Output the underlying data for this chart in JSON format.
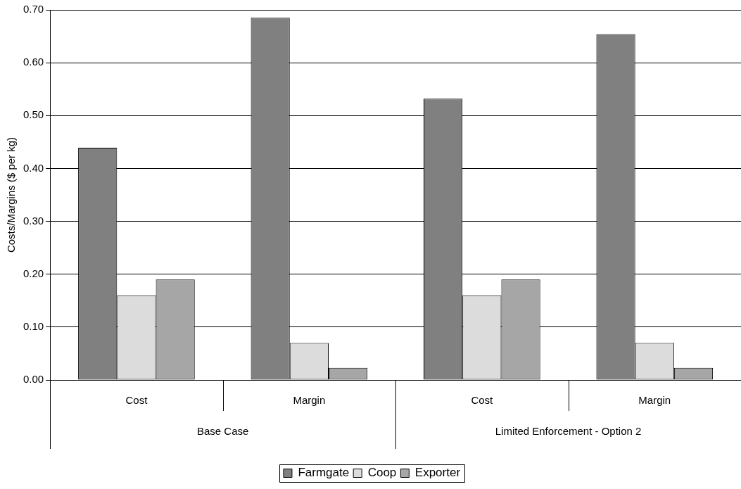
{
  "chart_data": {
    "type": "bar",
    "ylabel": "Costs/Margins ($ per kg)",
    "categories": [
      "Cost",
      "Margin",
      "Cost",
      "Margin"
    ],
    "annotations": [
      "Base Case",
      "Limited Enforcement - Option 2"
    ],
    "series": [
      {
        "name": "Farmgate",
        "color": "#808080",
        "values": [
          0.439,
          0.685,
          0.532,
          0.654
        ]
      },
      {
        "name": "Coop",
        "color": "#dcdcdc",
        "values": [
          0.16,
          0.07,
          0.16,
          0.07
        ]
      },
      {
        "name": "Exporter",
        "color": "#a6a6a6",
        "values": [
          0.19,
          0.023,
          0.19,
          0.023
        ]
      }
    ],
    "ylim": [
      0,
      0.7
    ],
    "yticks": [
      {
        "value": 0,
        "label": "0.00"
      },
      {
        "value": 0.1,
        "label": "0.10"
      },
      {
        "value": 0.2,
        "label": "0.20"
      },
      {
        "value": 0.3,
        "label": "0.30"
      },
      {
        "value": 0.4,
        "label": "0.40"
      },
      {
        "value": 0.5,
        "label": "0.50"
      },
      {
        "value": 0.6,
        "label": "0.60"
      },
      {
        "value": 0.7,
        "label": "0.70"
      }
    ],
    "grid": "y",
    "legend": "bottom"
  }
}
